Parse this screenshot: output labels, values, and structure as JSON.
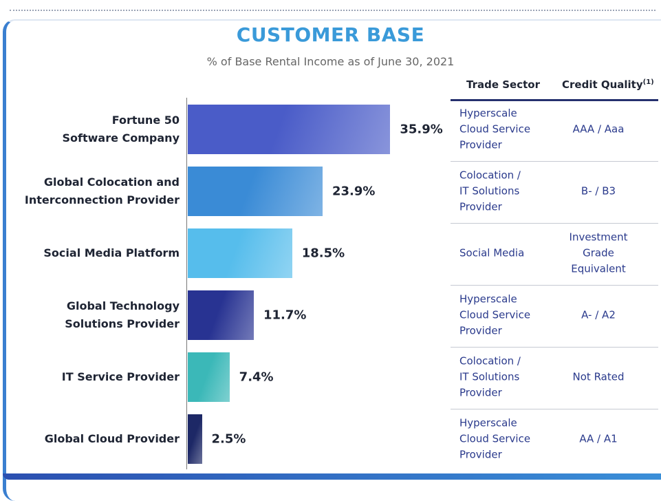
{
  "chart_data": {
    "type": "bar",
    "orientation": "horizontal",
    "title": "CUSTOMER BASE",
    "subtitle": "% of Base Rental Income as of June 30, 2021",
    "categories": [
      "Fortune 50\nSoftware Company",
      "Global Colocation and\nInterconnection Provider",
      "Social Media Platform",
      "Global Technology\nSolutions Provider",
      "IT Service Provider",
      "Global Cloud Provider"
    ],
    "values": [
      35.9,
      23.9,
      18.5,
      11.7,
      7.4,
      2.5
    ],
    "value_labels": [
      "35.9%",
      "23.9%",
      "18.5%",
      "11.7%",
      "7.4%",
      "2.5%"
    ],
    "colors": [
      "#4a5cc8",
      "#3a8bd6",
      "#56bdec",
      "#283392",
      "#3bb8b8",
      "#1d2866"
    ]
  },
  "table": {
    "columns": [
      "Trade Sector",
      "Credit Quality"
    ],
    "column_note": "(1)",
    "rows": [
      [
        "Hyperscale\nCloud Service\nProvider",
        "AAA / Aaa"
      ],
      [
        "Colocation /\nIT Solutions\nProvider",
        "B- / B3"
      ],
      [
        "Social Media",
        "Investment\nGrade\nEquivalent"
      ],
      [
        "Hyperscale\nCloud Service\nProvider",
        "A- / A2"
      ],
      [
        "Colocation /\nIT Solutions\nProvider",
        "Not Rated"
      ],
      [
        "Hyperscale\nCloud Service\nProvider",
        "AA / A1"
      ]
    ]
  }
}
